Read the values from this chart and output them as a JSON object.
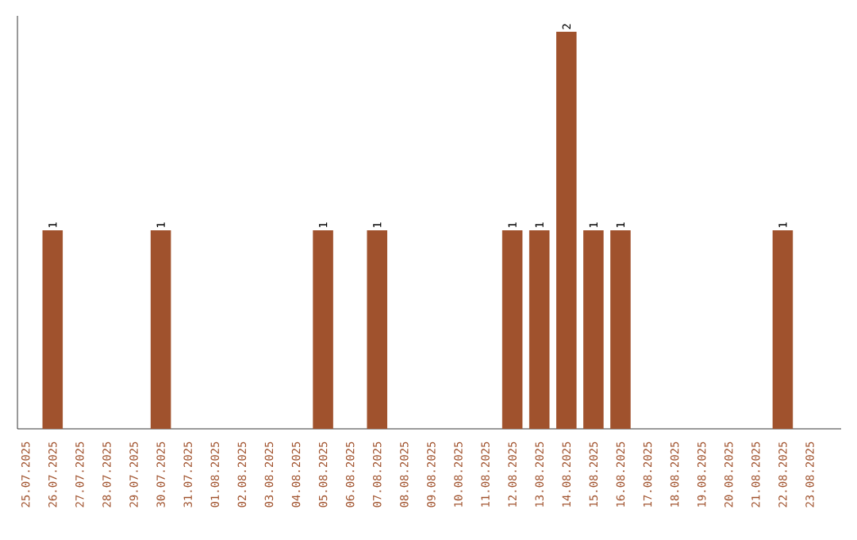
{
  "chart_data": {
    "type": "bar",
    "categories": [
      "25.07.2025",
      "26.07.2025",
      "27.07.2025",
      "28.07.2025",
      "29.07.2025",
      "30.07.2025",
      "31.07.2025",
      "01.08.2025",
      "02.08.2025",
      "03.08.2025",
      "04.08.2025",
      "05.08.2025",
      "06.08.2025",
      "07.08.2025",
      "08.08.2025",
      "09.08.2025",
      "10.08.2025",
      "11.08.2025",
      "12.08.2025",
      "13.08.2025",
      "14.08.2025",
      "15.08.2025",
      "16.08.2025",
      "17.08.2025",
      "18.08.2025",
      "19.08.2025",
      "20.08.2025",
      "21.08.2025",
      "22.08.2025",
      "23.08.2025"
    ],
    "values": [
      0,
      1,
      0,
      0,
      0,
      1,
      0,
      0,
      0,
      0,
      0,
      1,
      0,
      1,
      0,
      0,
      0,
      0,
      1,
      1,
      2,
      1,
      1,
      0,
      0,
      0,
      0,
      0,
      1,
      0
    ],
    "value_labels": [
      null,
      "1",
      null,
      null,
      null,
      "1",
      null,
      null,
      null,
      null,
      null,
      "1",
      null,
      "1",
      null,
      null,
      null,
      null,
      "1",
      "1",
      "2",
      "1",
      "1",
      null,
      null,
      null,
      null,
      null,
      "1",
      null
    ],
    "color": "#a0522d",
    "ylim": [
      0,
      2.08
    ],
    "tick_labels": "x"
  }
}
